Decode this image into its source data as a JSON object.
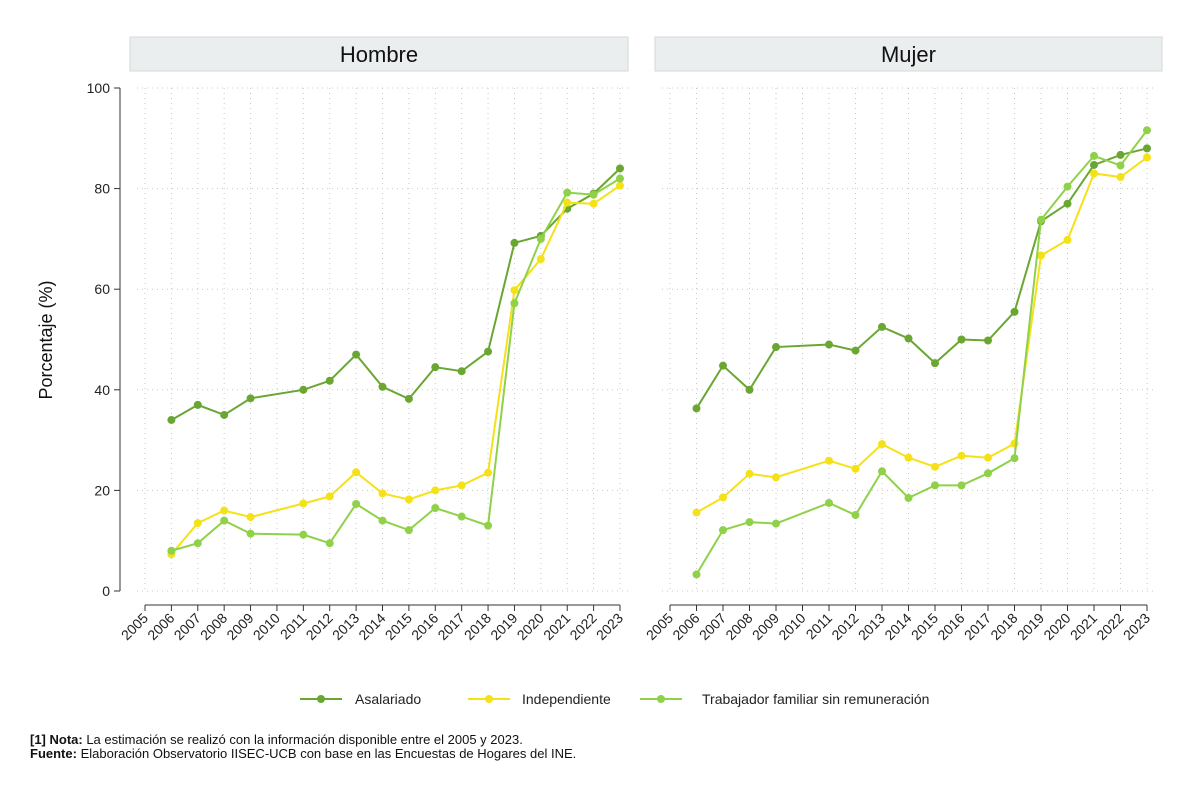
{
  "chart_data": {
    "type": "line",
    "ylabel": "Porcentaje (%)",
    "ylim": [
      0,
      100
    ],
    "yticks": [
      0,
      20,
      40,
      60,
      80,
      100
    ],
    "xticks": [
      "2005",
      "2006",
      "2007",
      "2008",
      "2009",
      "2010",
      "2011",
      "2012",
      "2013",
      "2014",
      "2015",
      "2016",
      "2017",
      "2018",
      "2019",
      "2020",
      "2021",
      "2022",
      "2023"
    ],
    "grid": true,
    "legend_position": "bottom",
    "series_style": [
      {
        "name": "Asalariado",
        "color": "#6aa632"
      },
      {
        "name": "Independiente",
        "color": "#f5e117"
      },
      {
        "name": "Trabajador familiar sin remuneración",
        "color": "#8fd149"
      }
    ],
    "panels": [
      {
        "title": "Hombre",
        "series": [
          {
            "name": "Asalariado",
            "x": [
              2006,
              2007,
              2008,
              2009,
              2011,
              2012,
              2013,
              2014,
              2015,
              2016,
              2017,
              2018,
              2019,
              2020,
              2021,
              2022,
              2023
            ],
            "values": [
              34,
              37,
              35,
              38.3,
              40,
              41.8,
              47,
              40.6,
              38.2,
              44.5,
              43.7,
              47.6,
              69.2,
              70.6,
              76,
              79,
              84
            ]
          },
          {
            "name": "Independiente",
            "x": [
              2006,
              2007,
              2008,
              2009,
              2011,
              2012,
              2013,
              2014,
              2015,
              2016,
              2017,
              2018,
              2019,
              2020,
              2021,
              2022,
              2023
            ],
            "values": [
              7.3,
              13.5,
              16,
              14.7,
              17.4,
              18.8,
              23.6,
              19.4,
              18.2,
              20,
              21,
              23.5,
              59.8,
              66,
              77.2,
              77,
              80.6
            ]
          },
          {
            "name": "Trabajador familiar sin remuneración",
            "x": [
              2006,
              2007,
              2008,
              2009,
              2011,
              2012,
              2013,
              2014,
              2015,
              2016,
              2017,
              2018,
              2019,
              2020,
              2021,
              2022,
              2023
            ],
            "values": [
              8,
              9.5,
              14,
              11.4,
              11.2,
              9.5,
              17.3,
              14,
              12.1,
              16.5,
              14.8,
              13,
              57.2,
              70,
              79.2,
              78.8,
              82
            ]
          }
        ]
      },
      {
        "title": "Mujer",
        "series": [
          {
            "name": "Asalariado",
            "x": [
              2006,
              2007,
              2008,
              2009,
              2011,
              2012,
              2013,
              2014,
              2015,
              2016,
              2017,
              2018,
              2019,
              2020,
              2021,
              2022,
              2023
            ],
            "values": [
              36.3,
              44.8,
              40,
              48.5,
              49,
              47.8,
              52.5,
              50.2,
              45.3,
              50,
              49.8,
              55.5,
              73.5,
              77,
              84.7,
              86.7,
              88
            ]
          },
          {
            "name": "Independiente",
            "x": [
              2006,
              2007,
              2008,
              2009,
              2011,
              2012,
              2013,
              2014,
              2015,
              2016,
              2017,
              2018,
              2019,
              2020,
              2021,
              2022,
              2023
            ],
            "values": [
              15.6,
              18.6,
              23.3,
              22.6,
              25.9,
              24.3,
              29.2,
              26.5,
              24.7,
              26.9,
              26.5,
              29.3,
              66.7,
              69.8,
              83,
              82.3,
              86.2
            ]
          },
          {
            "name": "Trabajador familiar sin remuneración",
            "x": [
              2006,
              2007,
              2008,
              2009,
              2011,
              2012,
              2013,
              2014,
              2015,
              2016,
              2017,
              2018,
              2019,
              2020,
              2021,
              2022,
              2023
            ],
            "values": [
              3.3,
              12.1,
              13.7,
              13.4,
              17.5,
              15.1,
              23.8,
              18.5,
              21,
              21,
              23.4,
              26.4,
              73.8,
              80.4,
              86.5,
              84.6,
              91.6
            ]
          }
        ]
      }
    ]
  },
  "notes": {
    "note_label": "[1] Nota:",
    "note_text": " La estimación se realizó con la información disponible entre el 2005 y 2023.",
    "source_label": "Fuente:",
    "source_text": " Elaboración Observatorio IISEC-UCB con base en las Encuestas de Hogares del INE."
  }
}
